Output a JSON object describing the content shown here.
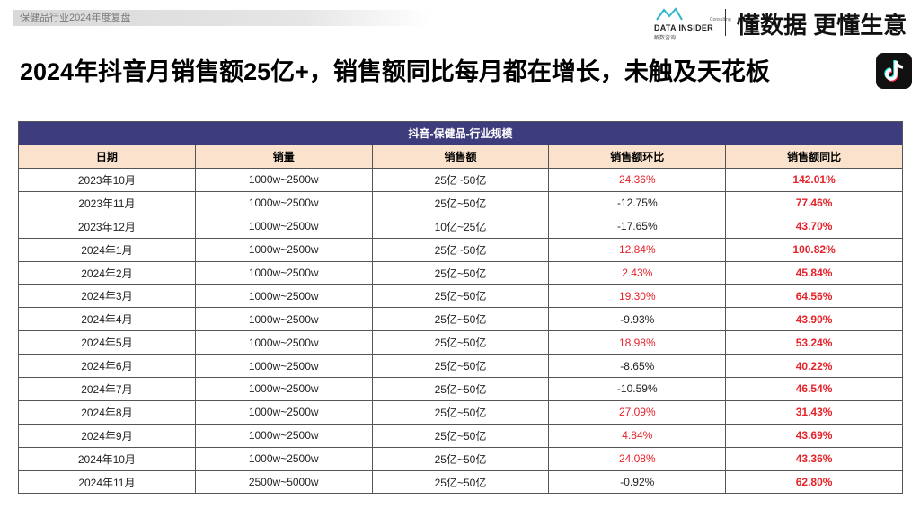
{
  "header": {
    "tag": "保健品行业2024年度复盘",
    "logo_brand": "DATA INSIDER",
    "logo_sub": "Consulting",
    "logo_cn": "解数咨询",
    "slogan": "懂数据 更懂生意"
  },
  "title": "2024年抖音月销售额25亿+，销售额同比每月都在增长，未触及天花板",
  "table": {
    "caption": "抖音-保健品-行业规模",
    "columns": [
      "日期",
      "销量",
      "销售额",
      "销售额环比",
      "销售额同比"
    ],
    "rows": [
      [
        "2023年10月",
        "1000w~2500w",
        "25亿~50亿",
        "24.36%",
        "142.01%"
      ],
      [
        "2023年11月",
        "1000w~2500w",
        "25亿~50亿",
        "-12.75%",
        "77.46%"
      ],
      [
        "2023年12月",
        "1000w~2500w",
        "10亿~25亿",
        "-17.65%",
        "43.70%"
      ],
      [
        "2024年1月",
        "1000w~2500w",
        "25亿~50亿",
        "12.84%",
        "100.82%"
      ],
      [
        "2024年2月",
        "1000w~2500w",
        "25亿~50亿",
        "2.43%",
        "45.84%"
      ],
      [
        "2024年3月",
        "1000w~2500w",
        "25亿~50亿",
        "19.30%",
        "64.56%"
      ],
      [
        "2024年4月",
        "1000w~2500w",
        "25亿~50亿",
        "-9.93%",
        "43.90%"
      ],
      [
        "2024年5月",
        "1000w~2500w",
        "25亿~50亿",
        "18.98%",
        "53.24%"
      ],
      [
        "2024年6月",
        "1000w~2500w",
        "25亿~50亿",
        "-8.65%",
        "40.22%"
      ],
      [
        "2024年7月",
        "1000w~2500w",
        "25亿~50亿",
        "-10.59%",
        "46.54%"
      ],
      [
        "2024年8月",
        "1000w~2500w",
        "25亿~50亿",
        "27.09%",
        "31.43%"
      ],
      [
        "2024年9月",
        "1000w~2500w",
        "25亿~50亿",
        "4.84%",
        "43.69%"
      ],
      [
        "2024年10月",
        "1000w~2500w",
        "25亿~50亿",
        "24.08%",
        "43.36%"
      ],
      [
        "2024年11月",
        "2500w~5000w",
        "25亿~50亿",
        "-0.92%",
        "62.80%"
      ]
    ]
  }
}
